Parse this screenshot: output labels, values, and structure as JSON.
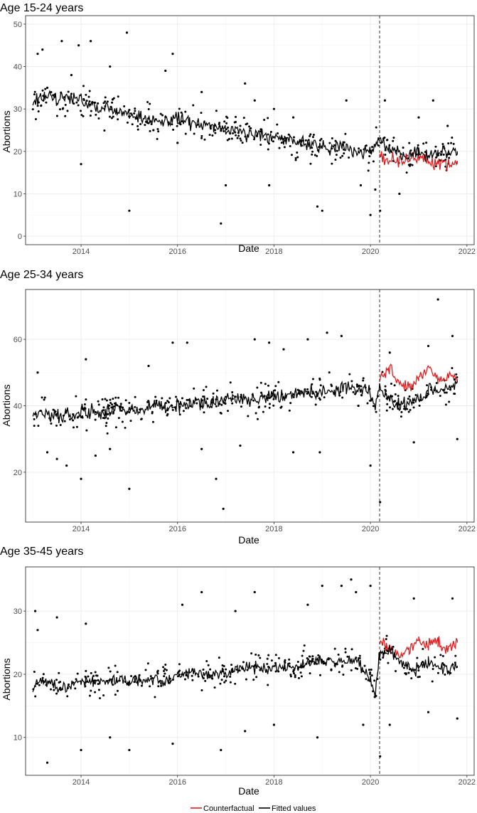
{
  "chart_data": [
    {
      "type": "line",
      "title": "Age 15-24 years",
      "xlabel": "Date",
      "ylabel": "Abortions",
      "xlim": [
        2012.85,
        2022.15
      ],
      "ylim": [
        -2,
        52
      ],
      "xticks": [
        2014,
        2016,
        2018,
        2020,
        2022
      ],
      "yticks": [
        0,
        10,
        20,
        30,
        40,
        50
      ],
      "xtick_labels": [
        "2014",
        "2016",
        "2018",
        "2020",
        "2022"
      ],
      "ytick_labels": [
        "0",
        "10",
        "20",
        "30",
        "40",
        "50"
      ],
      "vline_x": 2020.19,
      "grid": true,
      "fitted": {
        "name": "Fitted values",
        "x": [
          2013.0,
          2013.25,
          2013.5,
          2013.75,
          2014.0,
          2014.25,
          2014.5,
          2014.75,
          2015.0,
          2015.25,
          2015.5,
          2015.75,
          2016.0,
          2016.25,
          2016.5,
          2016.75,
          2017.0,
          2017.25,
          2017.5,
          2017.75,
          2018.0,
          2018.25,
          2018.5,
          2018.75,
          2019.0,
          2019.25,
          2019.5,
          2019.75,
          2020.0,
          2020.1,
          2020.19,
          2020.4,
          2020.6,
          2020.8,
          2021.0,
          2021.2,
          2021.4,
          2021.6,
          2021.8
        ],
        "y": [
          32,
          33,
          32,
          33,
          32,
          31,
          30,
          30,
          29,
          28,
          27,
          27,
          28,
          27,
          26,
          26,
          25,
          25,
          24,
          24,
          23,
          23,
          22,
          22,
          21,
          21,
          21,
          20,
          20,
          21,
          23,
          20,
          19,
          19,
          20,
          19,
          20,
          20,
          20
        ]
      },
      "counterfactual": {
        "name": "Counterfactual",
        "x": [
          2020.19,
          2020.4,
          2020.6,
          2020.8,
          2021.0,
          2021.2,
          2021.4,
          2021.6,
          2021.8
        ],
        "y": [
          19,
          18,
          18,
          18,
          19,
          18,
          17,
          17,
          17
        ]
      },
      "observed_points": {
        "x": [
          2013.1,
          2013.2,
          2013.3,
          2013.6,
          2013.8,
          2013.95,
          2014.0,
          2014.2,
          2014.6,
          2014.95,
          2015.0,
          2015.5,
          2015.75,
          2015.9,
          2016.0,
          2016.5,
          2016.9,
          2017.0,
          2017.4,
          2017.6,
          2017.9,
          2018.0,
          2018.4,
          2018.9,
          2019.0,
          2019.5,
          2019.8,
          2020.0,
          2020.1,
          2020.2,
          2020.3,
          2020.6,
          2021.0,
          2021.3,
          2021.6
        ],
        "y": [
          43,
          44,
          35,
          46,
          38,
          45,
          17,
          46,
          40,
          48,
          6,
          25,
          39,
          43,
          22,
          34,
          3,
          12,
          36,
          32,
          12,
          30,
          28,
          7,
          6,
          32,
          12,
          5,
          11,
          6,
          32,
          10,
          28,
          32,
          26
        ]
      }
    },
    {
      "type": "line",
      "title": "Age 25-34 years",
      "xlabel": "Date",
      "ylabel": "Abortions",
      "xlim": [
        2012.85,
        2022.15
      ],
      "ylim": [
        5,
        75
      ],
      "xticks": [
        2014,
        2016,
        2018,
        2020,
        2022
      ],
      "yticks": [
        20,
        40,
        60
      ],
      "xtick_labels": [
        "2014",
        "2016",
        "2018",
        "2020",
        "2022"
      ],
      "ytick_labels": [
        "20",
        "40",
        "60"
      ],
      "vline_x": 2020.19,
      "grid": true,
      "fitted": {
        "name": "Fitted values",
        "x": [
          2013.0,
          2013.25,
          2013.5,
          2013.75,
          2014.0,
          2014.25,
          2014.5,
          2014.75,
          2015.0,
          2015.25,
          2015.5,
          2015.75,
          2016.0,
          2016.25,
          2016.5,
          2016.75,
          2017.0,
          2017.25,
          2017.5,
          2017.75,
          2018.0,
          2018.25,
          2018.5,
          2018.75,
          2019.0,
          2019.25,
          2019.5,
          2019.75,
          2020.0,
          2020.1,
          2020.19,
          2020.4,
          2020.6,
          2020.8,
          2021.0,
          2021.2,
          2021.4,
          2021.6,
          2021.8
        ],
        "y": [
          37,
          38,
          37,
          37,
          38,
          38,
          38,
          39,
          39,
          39,
          40,
          40,
          40,
          41,
          41,
          41,
          42,
          42,
          42,
          43,
          43,
          43,
          44,
          44,
          44,
          45,
          45,
          45,
          44,
          39,
          46,
          42,
          40,
          41,
          42,
          44,
          45,
          46,
          47
        ]
      },
      "counterfactual": {
        "name": "Counterfactual",
        "x": [
          2020.19,
          2020.4,
          2020.6,
          2020.8,
          2021.0,
          2021.2,
          2021.4,
          2021.6,
          2021.8
        ],
        "y": [
          49,
          51,
          47,
          46,
          48,
          52,
          48,
          49,
          48
        ]
      },
      "observed_points": {
        "x": [
          2013.1,
          2013.3,
          2013.5,
          2013.7,
          2014.0,
          2014.1,
          2014.3,
          2014.6,
          2015.0,
          2015.4,
          2015.9,
          2016.2,
          2016.5,
          2016.8,
          2016.95,
          2017.3,
          2017.6,
          2017.9,
          2018.2,
          2018.4,
          2018.7,
          2018.95,
          2019.1,
          2019.4,
          2019.75,
          2020.0,
          2020.2,
          2020.4,
          2020.9,
          2021.2,
          2021.4,
          2021.7,
          2021.8
        ],
        "y": [
          50,
          26,
          24,
          22,
          18,
          54,
          25,
          27,
          15,
          52,
          59,
          59,
          27,
          18,
          9,
          28,
          60,
          59,
          57,
          26,
          60,
          26,
          62,
          61,
          40,
          22,
          11,
          56,
          29,
          58,
          72,
          61,
          30
        ]
      }
    },
    {
      "type": "line",
      "title": "Age 35-45 years",
      "xlabel": "Date",
      "ylabel": "Abortions",
      "xlim": [
        2012.85,
        2022.15
      ],
      "ylim": [
        4,
        37
      ],
      "xticks": [
        2014,
        2016,
        2018,
        2020,
        2022
      ],
      "yticks": [
        10,
        20,
        30
      ],
      "xtick_labels": [
        "2014",
        "2016",
        "2018",
        "2020",
        "2022"
      ],
      "ytick_labels": [
        "10",
        "20",
        "30"
      ],
      "vline_x": 2020.19,
      "grid": true,
      "fitted": {
        "name": "Fitted values",
        "x": [
          2013.0,
          2013.25,
          2013.5,
          2013.75,
          2014.0,
          2014.25,
          2014.5,
          2014.75,
          2015.0,
          2015.25,
          2015.5,
          2015.75,
          2016.0,
          2016.25,
          2016.5,
          2016.75,
          2017.0,
          2017.25,
          2017.5,
          2017.75,
          2018.0,
          2018.25,
          2018.5,
          2018.75,
          2019.0,
          2019.25,
          2019.5,
          2019.75,
          2020.0,
          2020.1,
          2020.19,
          2020.4,
          2020.6,
          2020.8,
          2021.0,
          2021.2,
          2021.4,
          2021.6,
          2021.8
        ],
        "y": [
          18,
          19,
          18,
          18,
          19,
          19,
          19,
          19,
          19,
          19,
          19,
          19,
          20,
          20,
          20,
          20,
          20,
          21,
          21,
          21,
          21,
          21,
          21,
          22,
          22,
          22,
          22,
          22,
          19,
          17,
          23,
          24,
          22,
          21,
          21,
          22,
          21,
          21,
          21
        ]
      },
      "counterfactual": {
        "name": "Counterfactual",
        "x": [
          2020.19,
          2020.4,
          2020.6,
          2020.8,
          2021.0,
          2021.2,
          2021.4,
          2021.6,
          2021.8
        ],
        "y": [
          25,
          24,
          23,
          24,
          25,
          25,
          25,
          24,
          25
        ]
      },
      "observed_points": {
        "x": [
          2013.05,
          2013.1,
          2013.3,
          2013.5,
          2014.0,
          2014.1,
          2014.6,
          2015.0,
          2015.9,
          2016.1,
          2016.5,
          2016.9,
          2017.2,
          2017.4,
          2017.6,
          2018.0,
          2018.7,
          2018.9,
          2019.0,
          2019.4,
          2019.6,
          2019.7,
          2019.85,
          2020.0,
          2020.2,
          2020.4,
          2020.9,
          2021.2,
          2021.7,
          2021.8
        ],
        "y": [
          30,
          27,
          6,
          29,
          8,
          28,
          10,
          8,
          9,
          31,
          33,
          8,
          30,
          11,
          33,
          12,
          31,
          10,
          34,
          34,
          35,
          33,
          12,
          34,
          7,
          12,
          32,
          14,
          32,
          13
        ]
      }
    }
  ],
  "legend": {
    "entries": [
      {
        "label": "Counterfactual",
        "color": "#e41a1c"
      },
      {
        "label": "Fitted values",
        "color": "#000000"
      }
    ],
    "placement": "bottom"
  },
  "colors": {
    "fitted": "#000000",
    "counterfactual": "#e41a1c",
    "grid": "#ebebeb",
    "panel_border": "#333333"
  }
}
